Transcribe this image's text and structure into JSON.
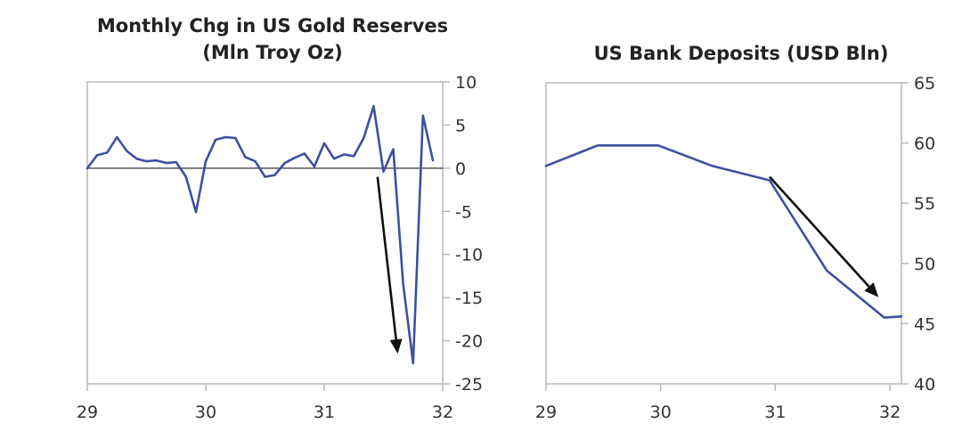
{
  "chart_data": [
    {
      "type": "line",
      "title": "Monthly Chg in US Gold Reserves\n(Mln Troy Oz)",
      "title_lines": [
        "Monthly Chg in US Gold Reserves",
        "(Mln Troy Oz)"
      ],
      "xlabel": "",
      "ylabel": "",
      "xlim": [
        29,
        32
      ],
      "ylim": [
        -25,
        10
      ],
      "x_ticks": [
        29,
        30,
        31,
        32
      ],
      "x_tick_labels": [
        "29",
        "30",
        "31",
        "32"
      ],
      "y_ticks": [
        10,
        5,
        0,
        -5,
        -10,
        -15,
        -20,
        -25
      ],
      "y_tick_labels": [
        "10",
        "5",
        "0",
        "-5",
        "-10",
        "-15",
        "-20",
        "-25"
      ],
      "y_axis_side": "right",
      "zero_line": true,
      "grid": false,
      "series": [
        {
          "color": "#3f4fa0",
          "x": [
            29.0,
            29.083,
            29.167,
            29.25,
            29.333,
            29.417,
            29.5,
            29.583,
            29.667,
            29.75,
            29.833,
            29.917,
            30.0,
            30.083,
            30.167,
            30.25,
            30.333,
            30.417,
            30.5,
            30.583,
            30.667,
            30.75,
            30.833,
            30.917,
            31.0,
            31.083,
            31.167,
            31.25,
            31.333,
            31.417,
            31.5,
            31.583,
            31.667,
            31.75,
            31.833,
            31.917
          ],
          "y": [
            0.0,
            1.5,
            1.8,
            3.6,
            2.0,
            1.1,
            0.8,
            0.9,
            0.6,
            0.7,
            -1.0,
            -5.1,
            0.8,
            3.3,
            3.6,
            3.5,
            1.3,
            0.8,
            -1.0,
            -0.8,
            0.6,
            1.2,
            1.7,
            0.2,
            2.9,
            1.1,
            1.6,
            1.4,
            3.5,
            7.2,
            -0.4,
            2.2,
            -13.5,
            -22.6,
            6.1,
            0.9
          ]
        }
      ],
      "annotations": [
        {
          "type": "arrow",
          "from": [
            31.45,
            -1.0
          ],
          "to": [
            31.62,
            -21.5
          ]
        }
      ]
    },
    {
      "type": "line",
      "title": "US Bank Deposits (USD Bln)",
      "xlabel": "",
      "ylabel": "",
      "xlim": [
        29,
        32.1
      ],
      "ylim": [
        40,
        65
      ],
      "x_ticks": [
        29,
        30,
        31,
        32
      ],
      "x_tick_labels": [
        "29",
        "30",
        "31",
        "32"
      ],
      "y_ticks": [
        65,
        60,
        55,
        50,
        45,
        40
      ],
      "y_tick_labels": [
        "65",
        "60",
        "55",
        "50",
        "45",
        "40"
      ],
      "y_axis_side": "right",
      "grid": false,
      "series": [
        {
          "color": "#3f4fa0",
          "x": [
            29.0,
            29.45,
            29.98,
            30.45,
            30.95,
            31.45,
            31.95,
            32.1
          ],
          "y": [
            58.1,
            59.8,
            59.8,
            58.1,
            56.9,
            49.4,
            45.5,
            45.6
          ]
        }
      ],
      "annotations": [
        {
          "type": "arrow",
          "from": [
            30.95,
            57.2
          ],
          "to": [
            31.9,
            47.2
          ]
        }
      ]
    }
  ]
}
